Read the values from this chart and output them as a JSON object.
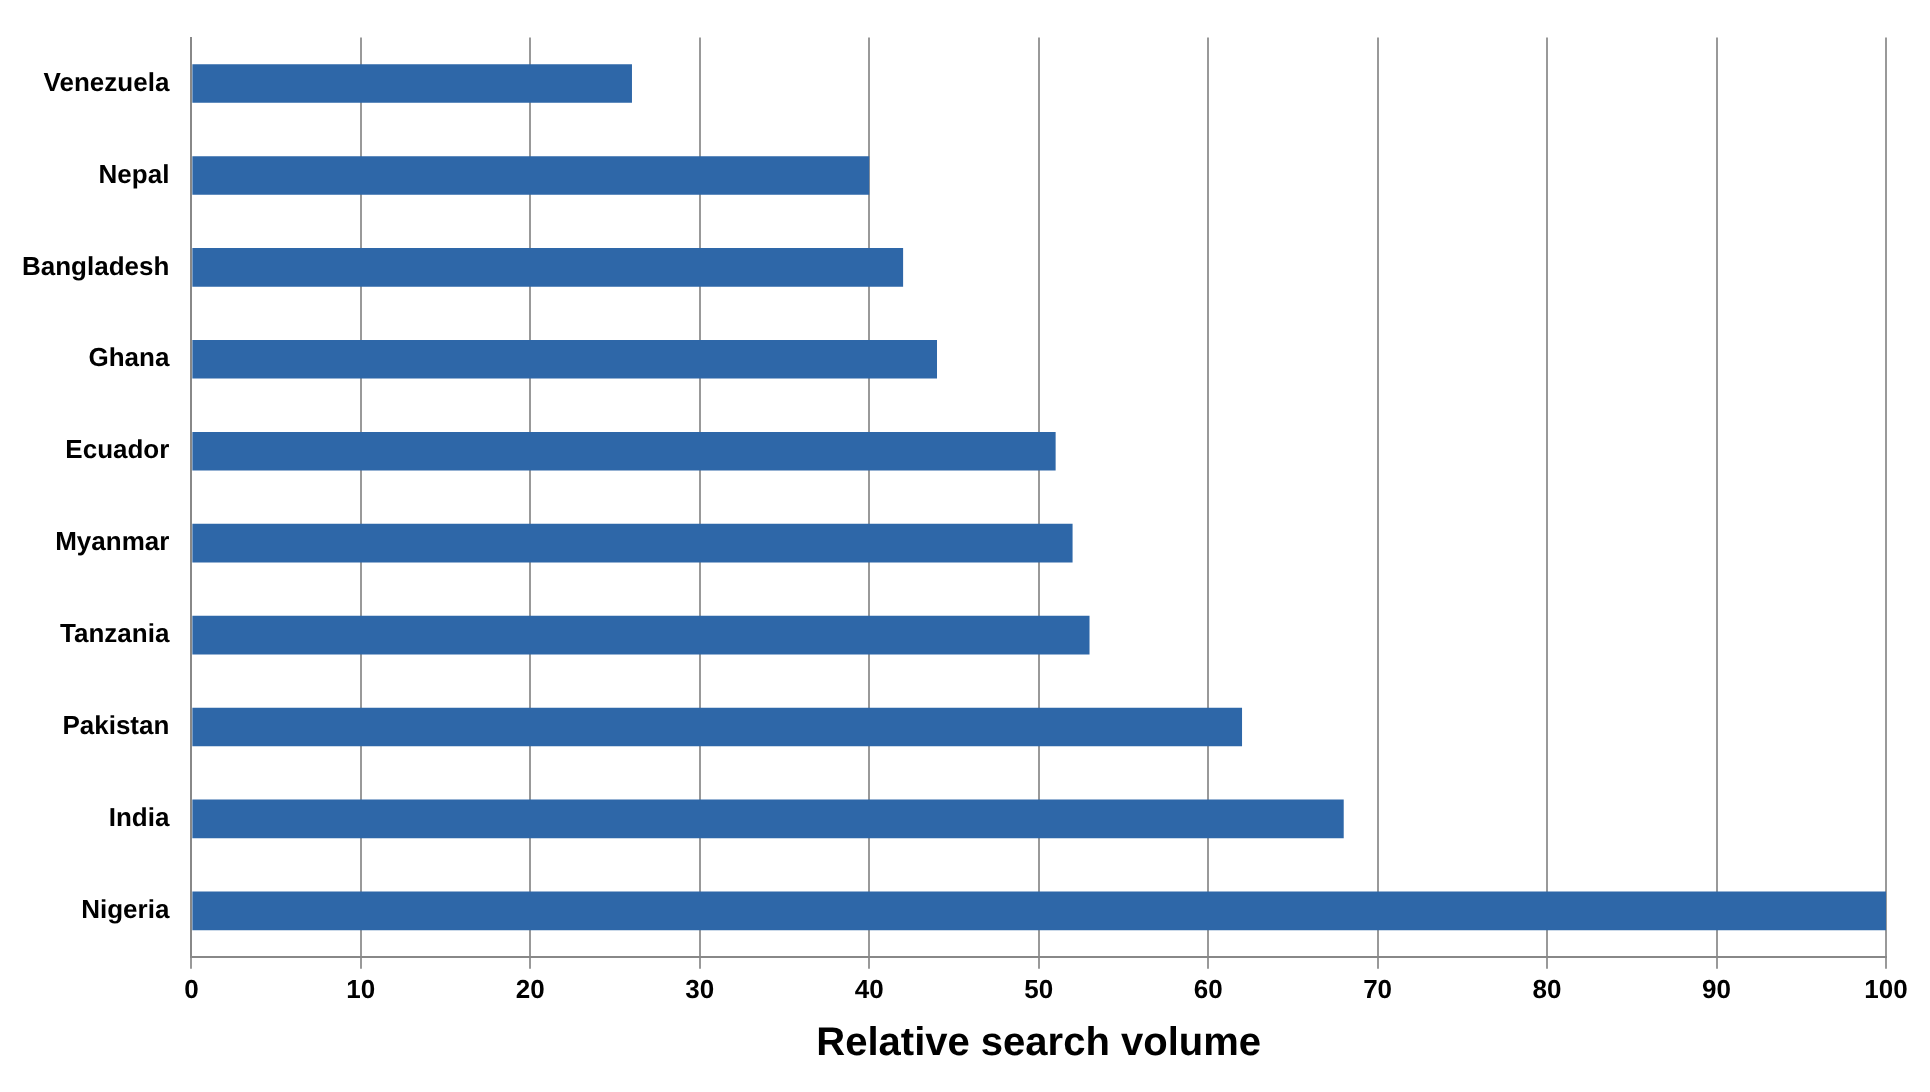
{
  "chart_data": {
    "type": "bar",
    "orientation": "horizontal",
    "xlabel": "Relative search volume",
    "categories": [
      "Venezuela",
      "Nepal",
      "Bangladesh",
      "Ghana",
      "Ecuador",
      "Myanmar",
      "Tanzania",
      "Pakistan",
      "India",
      "Nigeria"
    ],
    "values": [
      26,
      40,
      42,
      44,
      51,
      52,
      53,
      62,
      68,
      100
    ],
    "color": "#2e67a8",
    "xlim": [
      0,
      100
    ],
    "xticks": [
      0,
      10,
      20,
      30,
      40,
      50,
      60,
      70,
      80,
      90,
      100
    ],
    "grid": "x"
  }
}
